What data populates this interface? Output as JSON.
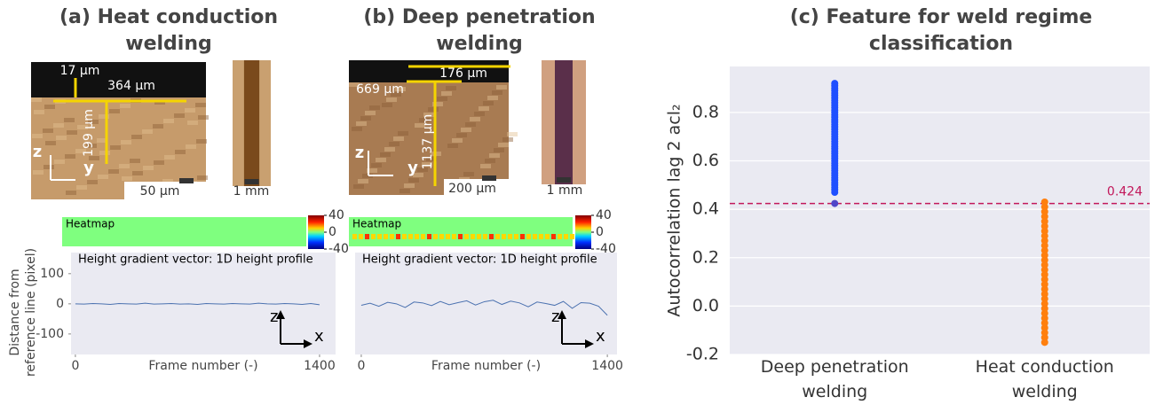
{
  "panels": [
    {
      "title": "(a) Heat conduction welding",
      "annotations": [
        "17 µm",
        "364 µm",
        "199 µm",
        "z",
        "y",
        "50 µm",
        "1 mm"
      ],
      "heatmap_label": "Heatmap",
      "colorbar_ticks": [
        40,
        0,
        -40
      ]
    },
    {
      "title": "(b) Deep penetration welding",
      "annotations": [
        "176 µm",
        "669 µm",
        "1137 µm",
        "z",
        "y",
        "200 µm",
        "1 mm"
      ],
      "heatmap_label": "Heatmap",
      "colorbar_ticks": [
        40,
        0,
        -40
      ]
    }
  ],
  "chart_data": [
    {
      "type": "line",
      "subtitle": "Height gradient vector: 1D height profile",
      "xlabel": "Frame number (-)",
      "ylabel": [
        "Distance from",
        "reference line (pixel)"
      ],
      "axis_glyph": [
        "z",
        "x"
      ],
      "color": "#4c72b0",
      "x": [
        0,
        50,
        100,
        150,
        200,
        250,
        300,
        350,
        400,
        450,
        500,
        550,
        600,
        650,
        700,
        750,
        800,
        850,
        900,
        950,
        1000,
        1050,
        1100,
        1150,
        1200,
        1250,
        1300,
        1350,
        1400
      ],
      "values": [
        0,
        -1,
        1,
        0,
        -2,
        1,
        0,
        -1,
        2,
        -1,
        0,
        1,
        -1,
        0,
        -2,
        1,
        0,
        -1,
        1,
        0,
        -1,
        2,
        0,
        -1,
        1,
        0,
        -2,
        1,
        -3
      ],
      "xlim": [
        -25,
        1492
      ],
      "ylim": [
        -168,
        170
      ],
      "xticks": [
        0,
        1400
      ],
      "yticks": [
        100,
        0,
        -100
      ]
    },
    {
      "type": "line",
      "subtitle": "Height gradient vector: 1D height profile",
      "xlabel": "Frame number (-)",
      "axis_glyph": [
        "z",
        "x"
      ],
      "color": "#4c72b0",
      "x": [
        0,
        50,
        100,
        150,
        200,
        250,
        300,
        350,
        400,
        450,
        500,
        550,
        600,
        650,
        700,
        750,
        800,
        850,
        900,
        950,
        1000,
        1050,
        1100,
        1150,
        1200,
        1250,
        1300,
        1350,
        1400
      ],
      "values": [
        -5,
        2,
        -8,
        5,
        0,
        -12,
        6,
        3,
        -6,
        8,
        -3,
        4,
        10,
        -4,
        7,
        12,
        -2,
        9,
        3,
        -10,
        6,
        1,
        -5,
        8,
        -15,
        4,
        2,
        -8,
        -38
      ],
      "xlim": [
        -35,
        1455
      ],
      "ylim": [
        -168,
        170
      ],
      "xticks": [
        0,
        1400
      ]
    },
    {
      "type": "strip",
      "title": "(c) Feature for weld regime classification",
      "ylabel": "Autocorrelation lag 2 acl₂",
      "categories": [
        "Deep penetration welding",
        "Heat conduction welding"
      ],
      "strips": [
        {
          "color": "#1f4fff",
          "values": [
            0.47,
            0.48,
            0.49,
            0.5,
            0.51,
            0.52,
            0.53,
            0.54,
            0.55,
            0.56,
            0.57,
            0.58,
            0.59,
            0.6,
            0.61,
            0.62,
            0.63,
            0.64,
            0.65,
            0.66,
            0.67,
            0.68,
            0.69,
            0.7,
            0.71,
            0.72,
            0.73,
            0.74,
            0.75,
            0.76,
            0.77,
            0.78,
            0.79,
            0.8,
            0.81,
            0.82,
            0.83,
            0.84,
            0.85,
            0.86,
            0.87,
            0.88,
            0.89,
            0.9,
            0.91,
            0.92
          ],
          "marked": {
            "value": 0.424,
            "color": "#5046c8"
          }
        },
        {
          "color": "#ff7f0e",
          "values": [
            -0.15,
            -0.13,
            -0.11,
            -0.09,
            -0.07,
            -0.05,
            -0.03,
            -0.01,
            0.01,
            0.03,
            0.05,
            0.07,
            0.09,
            0.11,
            0.13,
            0.15,
            0.17,
            0.19,
            0.21,
            0.23,
            0.25,
            0.27,
            0.29,
            0.31,
            0.33,
            0.35,
            0.37,
            0.39,
            0.41,
            0.43
          ]
        }
      ],
      "threshold": {
        "value": 0.424,
        "label": "0.424",
        "color": "#c2185b"
      },
      "ylim": [
        -0.2,
        0.99
      ],
      "yticks": [
        -0.2,
        {
          "value": 0,
          "label": "0.0"
        },
        0.2,
        0.4,
        0.6,
        0.8
      ],
      "grid": true
    }
  ]
}
